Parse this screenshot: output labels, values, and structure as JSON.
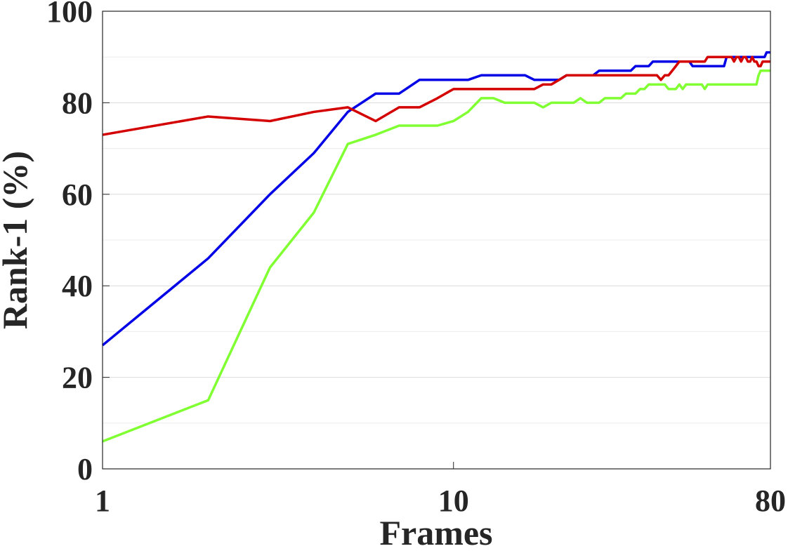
{
  "chart_data": {
    "type": "line",
    "x_label": "Frames",
    "y_label": "Rank-1 (%)",
    "x": [
      1,
      2,
      3,
      4,
      5,
      6,
      7,
      8,
      9,
      10,
      11,
      12,
      13,
      14,
      15,
      16,
      17,
      18,
      19,
      20,
      21,
      22,
      23,
      24,
      25,
      26,
      27,
      28,
      29,
      30,
      31,
      32,
      33,
      34,
      35,
      36,
      37,
      38,
      39,
      40,
      41,
      42,
      43,
      44,
      45,
      46,
      47,
      48,
      49,
      50,
      51,
      52,
      53,
      54,
      55,
      56,
      57,
      58,
      59,
      60,
      61,
      62,
      63,
      64,
      65,
      66,
      67,
      68,
      69,
      70,
      71,
      72,
      73,
      74,
      75,
      76,
      77,
      78,
      79,
      80
    ],
    "series": [
      {
        "color": "#0000e6",
        "values": [
          27,
          46,
          60,
          69,
          78,
          82,
          82,
          85,
          85,
          85,
          85,
          86,
          86,
          86,
          86,
          86,
          85,
          85,
          85,
          85,
          86,
          86,
          86,
          86,
          86,
          87,
          87,
          87,
          87,
          87,
          87,
          87,
          88,
          88,
          88,
          88,
          89,
          89,
          89,
          89,
          89,
          89,
          89,
          89,
          89,
          89,
          89,
          88,
          88,
          88,
          88,
          88,
          88,
          88,
          88,
          88,
          88,
          88,
          88,
          90,
          90,
          90,
          90,
          90,
          90,
          90,
          90,
          90,
          90,
          90,
          90,
          90,
          90,
          90,
          90,
          90,
          90,
          91,
          91,
          91
        ]
      },
      {
        "color": "#d40000",
        "values": [
          73,
          77,
          76,
          78,
          79,
          76,
          79,
          79,
          81,
          83,
          83,
          83,
          83,
          83,
          83,
          83,
          83,
          84,
          84,
          85,
          86,
          86,
          86,
          86,
          86,
          86,
          86,
          86,
          86,
          86,
          86,
          86,
          86,
          86,
          86,
          86,
          86,
          86,
          85,
          86,
          86,
          87,
          88,
          89,
          89,
          89,
          89,
          89,
          89,
          89,
          89,
          89,
          90,
          90,
          90,
          90,
          90,
          90,
          90,
          90,
          90,
          90,
          89,
          90,
          90,
          89,
          90,
          90,
          89,
          89,
          90,
          89,
          89,
          88,
          88,
          89,
          89,
          89,
          89,
          89
        ]
      },
      {
        "color": "#80ff33",
        "values": [
          6,
          15,
          44,
          56,
          71,
          73,
          75,
          75,
          75,
          76,
          78,
          81,
          81,
          80,
          80,
          80,
          80,
          79,
          80,
          80,
          80,
          80,
          81,
          80,
          80,
          80,
          81,
          81,
          81,
          81,
          82,
          82,
          82,
          83,
          83,
          84,
          84,
          84,
          84,
          84,
          83,
          83,
          83,
          84,
          83,
          84,
          84,
          84,
          84,
          84,
          84,
          83,
          84,
          84,
          84,
          84,
          84,
          84,
          84,
          84,
          84,
          84,
          84,
          84,
          84,
          84,
          84,
          84,
          84,
          84,
          84,
          84,
          84,
          86,
          87,
          87,
          87,
          87,
          87,
          87
        ]
      }
    ],
    "x_log": true,
    "xlim": [
      1,
      80
    ],
    "xticks": [
      1,
      10,
      80
    ],
    "ylim": [
      0,
      100
    ],
    "yticks": [
      0,
      20,
      40,
      60,
      80,
      100
    ],
    "minor_yticks": [
      10,
      30,
      50,
      70,
      90
    ],
    "grid": true
  }
}
